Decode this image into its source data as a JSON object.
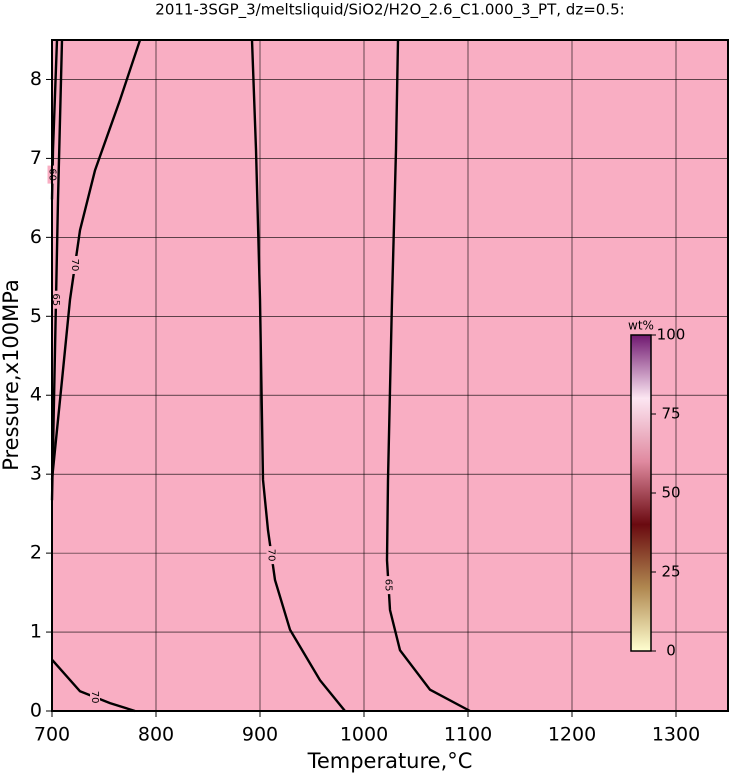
{
  "chart_data": {
    "type": "contour",
    "title": "2011-3SGP_3/meltsliquid/SiO2/H2O_2.6_C1.000_3_PT, dz=0.5:",
    "x_label": "Temperature,°C",
    "y_label": "Pressure,x100MPa",
    "xlim": [
      700,
      1350
    ],
    "ylim": [
      0,
      8.5
    ],
    "xticks": [
      700,
      800,
      900,
      1000,
      1100,
      1200,
      1300
    ],
    "yticks": [
      0,
      1,
      2,
      3,
      4,
      5,
      6,
      7,
      8
    ],
    "grid": true,
    "background": "#f9aec3",
    "contours": [
      {
        "level": 60,
        "x": [
          704.8,
          701,
          700
        ],
        "y": [
          8.5,
          7.11,
          6.48
        ]
      },
      {
        "level": 65,
        "x": [
          709.6,
          705.8,
          701.9,
          700
        ],
        "y": [
          8.5,
          6.48,
          3.94,
          2.67
        ]
      },
      {
        "level": 70,
        "x": [
          784.6,
          765.4,
          741.3,
          726.9,
          717.3,
          709.6,
          702.9,
          700
        ],
        "y": [
          8.5,
          7.74,
          6.85,
          6.09,
          5.21,
          4.19,
          3.31,
          2.93
        ]
      },
      {
        "level": 70,
        "x": [
          892.3,
          896.2,
          900,
          902.9,
          907.7,
          914.4,
          928.8,
          957.7,
          981.7
        ],
        "y": [
          8.5,
          7.11,
          5.21,
          2.93,
          2.29,
          1.66,
          1.03,
          0.39,
          0
        ]
      },
      {
        "level": 70,
        "x": [
          700,
          726.9,
          755.8,
          779.8
        ],
        "y": [
          0.65,
          0.25,
          0.1,
          0
        ]
      },
      {
        "level": 65,
        "x": [
          1032.7,
          1030.8,
          1026.9,
          1023.1,
          1022.1,
          1025,
          1034.6,
          1063.5,
          1101.9
        ],
        "y": [
          8.5,
          7.11,
          5.21,
          2.93,
          1.91,
          1.28,
          0.77,
          0.27,
          0
        ]
      }
    ],
    "colorbar": {
      "label": "wt%",
      "lim": [
        0,
        100
      ],
      "ticks": [
        0,
        25,
        50,
        75,
        100
      ],
      "colors": [
        "#ffffd0",
        "#b08850",
        "#6a0a10",
        "#e08aa0",
        "#fce6f2",
        "#701870"
      ]
    }
  }
}
